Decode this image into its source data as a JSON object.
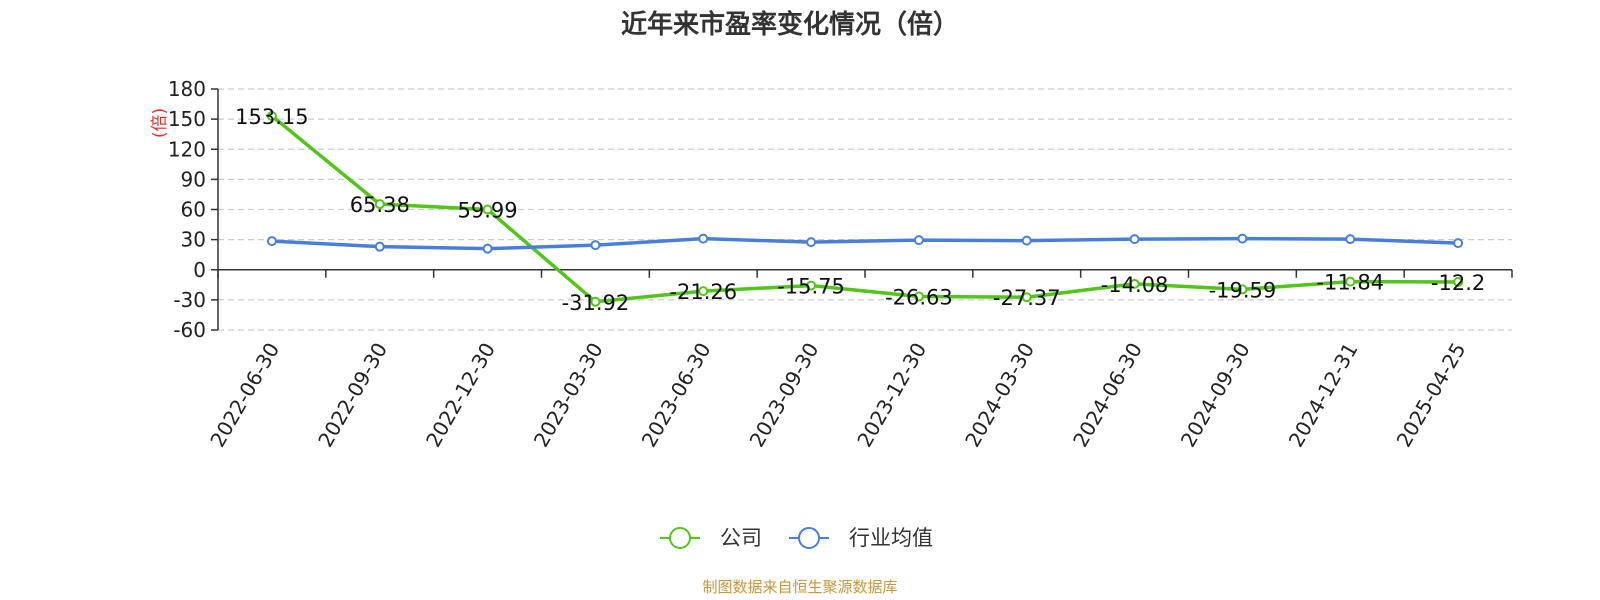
{
  "chart_data": {
    "type": "line",
    "title": "近年来市盈率变化情况（倍）",
    "ylabel": "(倍)",
    "xlabel": "",
    "categories": [
      "2022-06-30",
      "2022-09-30",
      "2022-12-30",
      "2023-03-30",
      "2023-06-30",
      "2023-09-30",
      "2023-12-30",
      "2024-03-30",
      "2024-06-30",
      "2024-09-30",
      "2024-12-31",
      "2025-04-25"
    ],
    "series": [
      {
        "name": "公司",
        "color": "#52c41a",
        "values": [
          153.15,
          65.38,
          59.99,
          -31.92,
          -21.26,
          -15.75,
          -26.63,
          -27.37,
          -14.08,
          -19.59,
          -11.84,
          -12.2
        ],
        "labels": [
          "153.15",
          "65.38",
          "59.99",
          "-31.92",
          "-21.26",
          "-15.75",
          "-26.63",
          "-27.37",
          "-14.08",
          "-19.59",
          "-11.84",
          "-12.2"
        ]
      },
      {
        "name": "行业均值",
        "color": "#4a7fd9",
        "values": [
          28.5,
          23.0,
          21.0,
          24.5,
          31.0,
          27.5,
          29.5,
          29.0,
          30.5,
          31.0,
          30.5,
          26.5
        ]
      }
    ],
    "ylim": [
      -60,
      180
    ],
    "yticks": [
      -60,
      -30,
      0,
      30,
      60,
      90,
      120,
      150,
      180
    ],
    "grid": true,
    "legend_position": "bottom-center"
  },
  "source_text": "制图数据来自恒生聚源数据库",
  "colors": {
    "title": "#333333",
    "unit": "#e0302a",
    "grid": "#cccccc",
    "source": "#c8963e"
  }
}
